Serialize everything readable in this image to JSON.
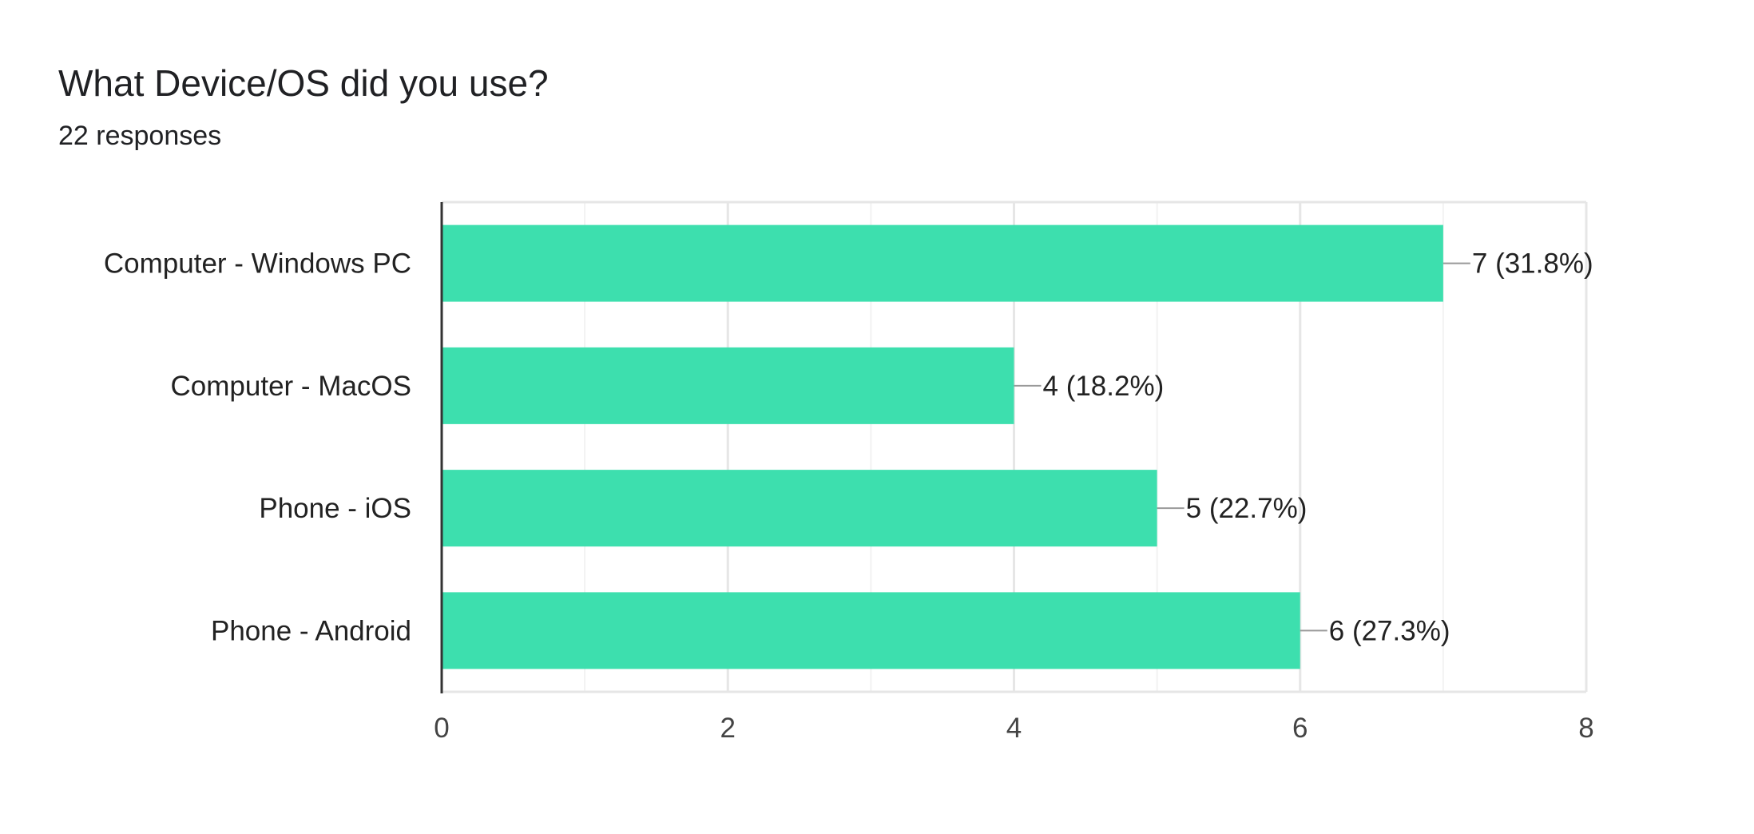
{
  "question": {
    "title": "What Device/OS did you use?",
    "responses": "22 responses"
  },
  "colors": {
    "bar": "#3ddfae",
    "grid_major": "#e6e6e6",
    "grid_minor": "#f2f2f2",
    "axis": "#333333",
    "leader": "#999999"
  },
  "chart_data": {
    "type": "bar",
    "orientation": "horizontal",
    "categories": [
      "Computer - Windows PC",
      "Computer - MacOS",
      "Phone - iOS",
      "Phone - Android"
    ],
    "values": [
      7,
      4,
      5,
      6
    ],
    "value_labels": [
      "7 (31.8%)",
      "4 (18.2%)",
      "5 (22.7%)",
      "6 (27.3%)"
    ],
    "xlim": [
      0,
      8
    ],
    "x_ticks": [
      0,
      2,
      4,
      6,
      8
    ],
    "x_tick_labels": [
      "0",
      "2",
      "4",
      "6",
      "8"
    ],
    "grid": true
  }
}
